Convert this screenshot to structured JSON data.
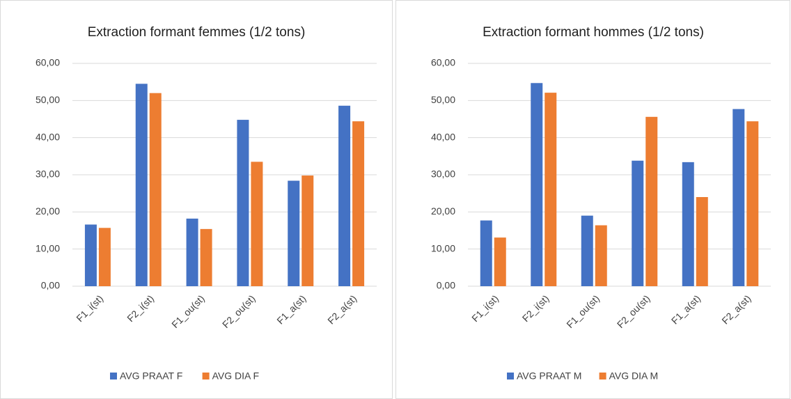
{
  "chart_data": [
    {
      "type": "bar",
      "title": "Extraction formant femmes (1/2 tons)",
      "categories": [
        "F1_i(st)",
        "F2_i(st)",
        "F1_ou(st)",
        "F2_ou(st)",
        "F1_a(st)",
        "F2_a(st)"
      ],
      "series": [
        {
          "name": "AVG PRAAT F",
          "color": "#4472c4",
          "values": [
            16.6,
            54.5,
            18.2,
            44.8,
            28.4,
            48.6
          ]
        },
        {
          "name": "AVG DIA F",
          "color": "#ed7d31",
          "values": [
            15.7,
            52.0,
            15.4,
            33.5,
            29.8,
            44.4
          ]
        }
      ],
      "ylim": [
        0,
        60
      ],
      "yticks": [
        {
          "value": 0,
          "label": "0,00"
        },
        {
          "value": 10,
          "label": "10,00"
        },
        {
          "value": 20,
          "label": "20,00"
        },
        {
          "value": 30,
          "label": "30,00"
        },
        {
          "value": 40,
          "label": "40,00"
        },
        {
          "value": 50,
          "label": "50,00"
        },
        {
          "value": 60,
          "label": "60,00"
        }
      ],
      "grid": true,
      "legend": "bottom"
    },
    {
      "type": "bar",
      "title": "Extraction formant hommes (1/2 tons)",
      "categories": [
        "F1_i(st)",
        "F2_i(st)",
        "F1_ou(st)",
        "F2_ou(st)",
        "F1_a(st)",
        "F2_a(st)"
      ],
      "series": [
        {
          "name": "AVG PRAAT M",
          "color": "#4472c4",
          "values": [
            17.7,
            54.7,
            19.0,
            33.8,
            33.4,
            47.7
          ]
        },
        {
          "name": "AVG DIA M",
          "color": "#ed7d31",
          "values": [
            13.1,
            52.1,
            16.4,
            45.6,
            24.0,
            44.4
          ]
        }
      ],
      "ylim": [
        0,
        60
      ],
      "yticks": [
        {
          "value": 0,
          "label": "0,00"
        },
        {
          "value": 10,
          "label": "10,00"
        },
        {
          "value": 20,
          "label": "20,00"
        },
        {
          "value": 30,
          "label": "30,00"
        },
        {
          "value": 40,
          "label": "40,00"
        },
        {
          "value": 50,
          "label": "50,00"
        },
        {
          "value": 60,
          "label": "60,00"
        }
      ],
      "grid": true,
      "legend": "bottom"
    }
  ]
}
